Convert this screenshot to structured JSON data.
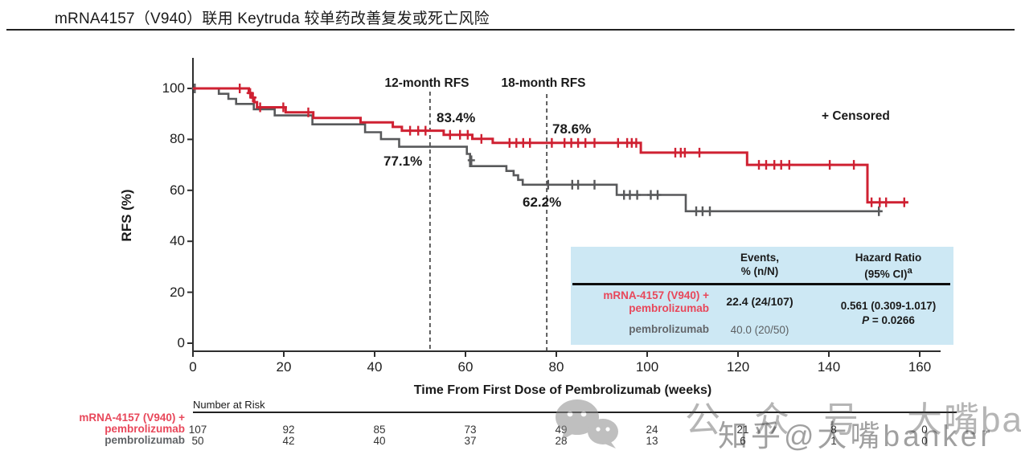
{
  "page": {
    "title": "mRNA4157（V940）联用 Keytruda 较单药改善复发或死亡风险"
  },
  "colors": {
    "combo_curve": "#cf2132",
    "combo_label": "#e8475a",
    "mono_curve": "#58595b",
    "inset_background": "#cde8f4",
    "axis": "#2e2e2e"
  },
  "chart_data": {
    "type": "line",
    "subtype": "kaplan-meier-step",
    "title": "",
    "xlabel": "Time From First Dose of Pembrolizumab (weeks)",
    "ylabel": "RFS (%)",
    "xlim": [
      0,
      164
    ],
    "ylim": [
      0,
      100
    ],
    "xticks": [
      0,
      20,
      40,
      60,
      80,
      100,
      120,
      140,
      160
    ],
    "yticks": [
      0,
      20,
      40,
      60,
      80,
      100
    ],
    "grid": false,
    "legend": "+ Censored",
    "landmarks": [
      {
        "label": "12-month RFS",
        "week": 52.2,
        "combo_value": 83.4,
        "mono_value": 77.1
      },
      {
        "label": "18-month RFS",
        "week": 77.9,
        "combo_value": 78.6,
        "mono_value": 62.2
      }
    ],
    "series": [
      {
        "name": "pembrolizumab",
        "color": "#58595b",
        "width": 2.6,
        "steps": [
          [
            0,
            100
          ],
          [
            5.7,
            97.9
          ],
          [
            7.8,
            95.9
          ],
          [
            9.5,
            93.9
          ],
          [
            13.4,
            91.8
          ],
          [
            18,
            89.4
          ],
          [
            26.3,
            85.9
          ],
          [
            37.9,
            82.8
          ],
          [
            41.4,
            80.1
          ],
          [
            45.4,
            77.1
          ],
          [
            60.3,
            74.3
          ],
          [
            61,
            69.5
          ],
          [
            69,
            67.6
          ],
          [
            70.6,
            65.9
          ],
          [
            71.6,
            64.1
          ],
          [
            72.6,
            62.2
          ],
          [
            93.3,
            58.2
          ],
          [
            108.5,
            51.8
          ]
        ],
        "end_week": 151.8,
        "censors": [
          [
            0.4,
            100
          ],
          [
            61.3,
            71.8
          ],
          [
            78.2,
            62.2
          ],
          [
            83.5,
            62.2
          ],
          [
            84.8,
            62.2
          ],
          [
            88.4,
            62.2
          ],
          [
            94.9,
            58.2
          ],
          [
            96.2,
            58.2
          ],
          [
            97.8,
            58.2
          ],
          [
            100.8,
            58.2
          ],
          [
            102.3,
            58.2
          ],
          [
            110.8,
            51.8
          ],
          [
            112.2,
            51.8
          ],
          [
            113.8,
            51.8
          ],
          [
            151,
            51.8
          ]
        ]
      },
      {
        "name": "mRNA-4157 (V940) + pembrolizumab",
        "color": "#cf2132",
        "width": 3,
        "steps": [
          [
            0,
            100
          ],
          [
            12.3,
            98.2
          ],
          [
            12.9,
            96.4
          ],
          [
            13.5,
            94.6
          ],
          [
            14.1,
            92.6
          ],
          [
            20.4,
            90.6
          ],
          [
            26.5,
            88.4
          ],
          [
            36.9,
            86.7
          ],
          [
            44,
            84.9
          ],
          [
            46,
            83.4
          ],
          [
            55.2,
            81.8
          ],
          [
            61.5,
            80.2
          ],
          [
            66,
            78.6
          ],
          [
            98.6,
            74.8
          ],
          [
            122,
            70.0
          ],
          [
            148.5,
            55.3
          ]
        ],
        "end_week": 157.5,
        "censors": [
          [
            10.3,
            100
          ],
          [
            12.6,
            98.2
          ],
          [
            13.2,
            96.4
          ],
          [
            14.8,
            92.6
          ],
          [
            19.9,
            92.6
          ],
          [
            25.4,
            90.6
          ],
          [
            47.8,
            83.4
          ],
          [
            49.6,
            83.4
          ],
          [
            51.2,
            83.4
          ],
          [
            56.6,
            81.8
          ],
          [
            58.8,
            81.8
          ],
          [
            60.5,
            81.8
          ],
          [
            63.5,
            80.2
          ],
          [
            69.7,
            78.6
          ],
          [
            71.2,
            78.6
          ],
          [
            72.7,
            78.6
          ],
          [
            74.2,
            78.6
          ],
          [
            79,
            78.6
          ],
          [
            81.8,
            78.6
          ],
          [
            83.3,
            78.6
          ],
          [
            84.8,
            78.6
          ],
          [
            86.4,
            78.6
          ],
          [
            88.4,
            78.6
          ],
          [
            93.6,
            78.6
          ],
          [
            95.6,
            78.6
          ],
          [
            96.6,
            78.6
          ],
          [
            97.6,
            78.6
          ],
          [
            106.2,
            74.8
          ],
          [
            107.4,
            74.8
          ],
          [
            108.3,
            74.8
          ],
          [
            111.5,
            74.8
          ],
          [
            124.6,
            70
          ],
          [
            126.2,
            70
          ],
          [
            128,
            70
          ],
          [
            129.5,
            70
          ],
          [
            131.3,
            70
          ],
          [
            140.2,
            70
          ],
          [
            145.5,
            70
          ],
          [
            149.4,
            55.3
          ],
          [
            151.2,
            55.3
          ],
          [
            152.6,
            55.3
          ],
          [
            156.6,
            55.3
          ]
        ]
      }
    ]
  },
  "annotations": {
    "landmark1_label": "12-month RFS",
    "landmark2_label": "18-month RFS",
    "combo_12mo": "83.4%",
    "mono_12mo": "77.1%",
    "combo_18mo": "78.6%",
    "mono_18mo": "62.2%",
    "censored_legend": "+ Censored"
  },
  "axis": {
    "y_title": "RFS (%)",
    "x_title": "Time From First Dose of Pembrolizumab (weeks)"
  },
  "inset_table": {
    "header": {
      "events_line1": "Events,",
      "events_line2": "% (n/N)",
      "hr_line1": "Hazard Ratio",
      "hr_line2": "(95% CI)",
      "hr_sup": "a"
    },
    "rows": [
      {
        "label_line1": "mRNA-4157 (V940) +",
        "label_line2": "pembrolizumab",
        "events": "22.4 (24/107)"
      },
      {
        "label_line1": "pembrolizumab",
        "events": "40.0 (20/50)"
      }
    ],
    "hazard_ratio": "0.561 (0.309-1.017)",
    "p_label": "P",
    "p_value": " = 0.0266"
  },
  "risk_table": {
    "title": "Number at Risk",
    "weeks": [
      0,
      20,
      40,
      60,
      80,
      100,
      120,
      140,
      160
    ],
    "row_labels": {
      "combo_line1": "mRNA-4157 (V940) +",
      "combo_line2": "pembrolizumab",
      "mono": "pembrolizumab"
    },
    "rows": [
      {
        "name": "mRNA-4157 (V940) + pembrolizumab",
        "values": [
          "107",
          "92",
          "85",
          "73",
          "49",
          "24",
          "21",
          "8",
          "0"
        ]
      },
      {
        "name": "pembrolizumab",
        "values": [
          "50",
          "42",
          "40",
          "37",
          "28",
          "13",
          "6",
          "1",
          "0"
        ]
      }
    ]
  },
  "watermarks": {
    "wechat_part1": "公众号",
    "wechat_part2": "大嘴banker",
    "zhihu": "知乎@大嘴banker"
  }
}
